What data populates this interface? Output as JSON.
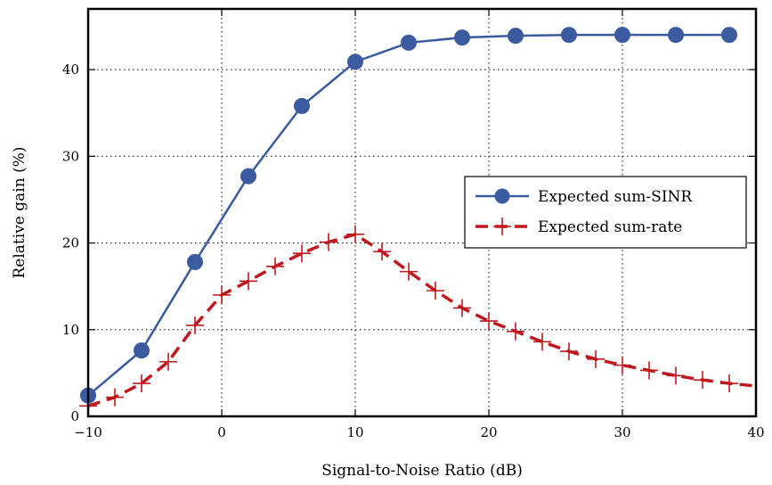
{
  "chart_data": {
    "type": "line",
    "xlabel": "Signal-to-Noise Ratio (dB)",
    "ylabel": "Relative gain (%)",
    "xlim": [
      -10,
      40
    ],
    "ylim": [
      0,
      47
    ],
    "xticks": [
      -10,
      0,
      10,
      20,
      30,
      40
    ],
    "xtick_labels": [
      "−10",
      "0",
      "10",
      "20",
      "30",
      "40"
    ],
    "yticks": [
      0,
      10,
      20,
      30,
      40
    ],
    "ytick_labels": [
      "0",
      "10",
      "20",
      "30",
      "40"
    ],
    "grid": true,
    "legend_position": "center-right",
    "series": [
      {
        "name": "Expected sum-SINR",
        "color": "#3a5ba0",
        "line_style": "solid",
        "marker": "circle",
        "x": [
          -10,
          -6,
          -2,
          2,
          6,
          10,
          14,
          18,
          22,
          26,
          30,
          34,
          38
        ],
        "y": [
          2.4,
          7.6,
          17.8,
          27.7,
          35.8,
          40.9,
          43.1,
          43.7,
          43.9,
          44.0,
          44.0,
          44.0,
          44.0
        ]
      },
      {
        "name": "Expected sum-rate",
        "color": "#c0181d",
        "line_style": "dashed",
        "marker": "plus",
        "marker_x": [
          -10,
          -8,
          -6,
          -4,
          -2,
          0,
          2,
          4,
          6,
          8,
          10,
          12,
          14,
          16,
          18,
          20,
          22,
          24,
          26,
          28,
          30,
          32,
          34,
          36,
          38
        ],
        "x": [
          -10,
          -8,
          -6,
          -4,
          -2,
          0,
          2,
          4,
          6,
          8,
          10,
          12,
          14,
          16,
          18,
          20,
          22,
          24,
          26,
          28,
          30,
          32,
          34,
          36,
          38,
          40
        ],
        "y": [
          1.2,
          2.2,
          3.8,
          6.3,
          10.5,
          14.0,
          15.6,
          17.3,
          18.8,
          20.1,
          21.0,
          19.0,
          16.7,
          14.5,
          12.5,
          11.0,
          9.8,
          8.6,
          7.5,
          6.6,
          5.9,
          5.3,
          4.7,
          4.2,
          3.8,
          3.5
        ]
      }
    ]
  }
}
